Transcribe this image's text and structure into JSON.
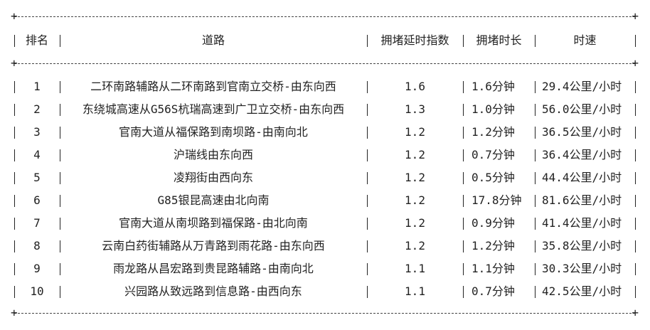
{
  "headers": [
    "排名",
    "道路",
    "拥堵延时指数",
    "拥堵时长",
    "时速"
  ],
  "rows": [
    [
      "1",
      "二环南路辅路从二环南路到官南立交桥-由东向西",
      "1.6",
      "1.6分钟",
      "29.4公里/小时"
    ],
    [
      "2",
      "东绕城高速从G56S杭瑞高速到广卫立交桥-由东向西",
      "1.3",
      "1.0分钟",
      "56.0公里/小时"
    ],
    [
      "3",
      "官南大道从福保路到南坝路-由南向北",
      "1.2",
      "1.2分钟",
      "36.5公里/小时"
    ],
    [
      "4",
      "沪瑞线由东向西",
      "1.2",
      "0.7分钟",
      "36.4公里/小时"
    ],
    [
      "5",
      "凌翔街由西向东",
      "1.2",
      "0.5分钟",
      "44.4公里/小时"
    ],
    [
      "6",
      "G85银昆高速由北向南",
      "1.2",
      "17.8分钟",
      "81.6公里/小时"
    ],
    [
      "7",
      "官南大道从南坝路到福保路-由北向南",
      "1.2",
      "0.9分钟",
      "41.4公里/小时"
    ],
    [
      "8",
      "云南白药街辅路从万青路到雨花路-由东向西",
      "1.2",
      "1.2分钟",
      "35.8公里/小时"
    ],
    [
      "9",
      "雨龙路从昌宏路到贵昆路辅路-由南向北",
      "1.1",
      "1.1分钟",
      "30.3公里/小时"
    ],
    [
      "10",
      "兴园路从致远路到信息路-由西向东",
      "1.1",
      "0.7分钟",
      "42.5公里/小时"
    ]
  ]
}
